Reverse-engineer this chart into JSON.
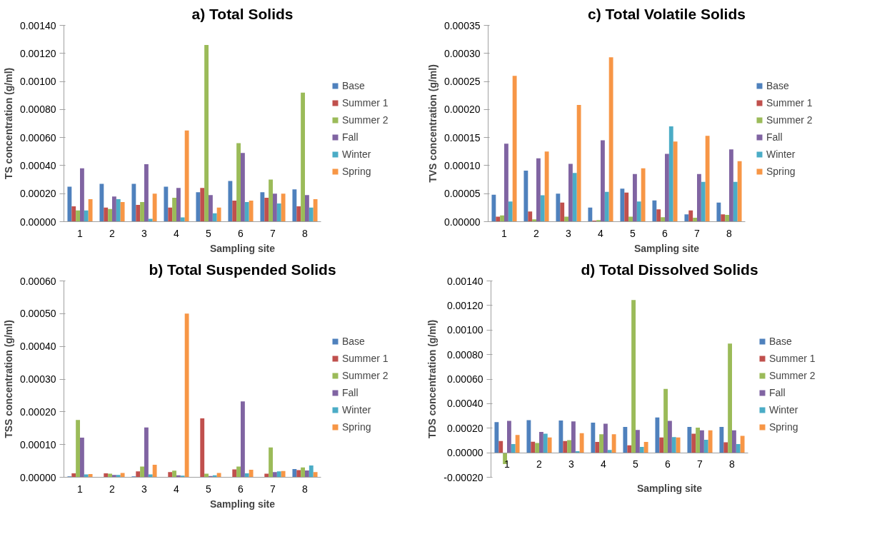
{
  "chart_data": [
    {
      "type": "bar",
      "title": "a) Total Solids",
      "xlabel": "Sampling site",
      "ylabel": "TS concentration (g/ml)",
      "legend": "right",
      "grid": false,
      "categories": [
        "1",
        "2",
        "3",
        "4",
        "5",
        "6",
        "7",
        "8"
      ],
      "ylim": [
        0,
        0.0014
      ],
      "yticks": [
        {
          "value": 0,
          "label": "0.00000"
        },
        {
          "value": 0.0002,
          "label": "0.00020"
        },
        {
          "value": 0.0004,
          "label": "0.00040"
        },
        {
          "value": 0.0006,
          "label": "0.00060"
        },
        {
          "value": 0.0008,
          "label": "0.00080"
        },
        {
          "value": 0.001,
          "label": "0.00100"
        },
        {
          "value": 0.0012,
          "label": "0.00120"
        },
        {
          "value": 0.0014,
          "label": "0.00140"
        }
      ],
      "series": [
        {
          "name": "Base",
          "color": "#4f81bd",
          "values": [
            0.00025,
            0.00027,
            0.00027,
            0.00025,
            0.00021,
            0.00029,
            0.00021,
            0.00023
          ]
        },
        {
          "name": "Summer 1",
          "color": "#c0504d",
          "values": [
            0.00011,
            0.0001,
            0.00012,
            0.0001,
            0.00024,
            0.00015,
            0.00017,
            0.00011
          ]
        },
        {
          "name": "Summer 2",
          "color": "#9bbb59",
          "values": [
            8e-05,
            9e-05,
            0.00014,
            0.00017,
            0.00126,
            0.00056,
            0.0003,
            0.00092
          ]
        },
        {
          "name": "Fall",
          "color": "#8064a2",
          "values": [
            0.00038,
            0.00018,
            0.00041,
            0.00024,
            0.00019,
            0.00049,
            0.0002,
            0.00019
          ]
        },
        {
          "name": "Winter",
          "color": "#4bacc6",
          "values": [
            8e-05,
            0.00016,
            2e-05,
            3e-05,
            6e-05,
            0.00014,
            0.00013,
            0.0001
          ]
        },
        {
          "name": "Spring",
          "color": "#f79646",
          "values": [
            0.00016,
            0.00014,
            0.0002,
            0.00065,
            0.0001,
            0.00015,
            0.0002,
            0.00016
          ]
        }
      ]
    },
    {
      "type": "bar",
      "title": "c) Total Volatile Solids",
      "xlabel": "Sampling site",
      "ylabel": "TVS concentration (g/ml)",
      "legend": "right",
      "grid": false,
      "categories": [
        "1",
        "2",
        "3",
        "4",
        "5",
        "6",
        "7",
        "8"
      ],
      "ylim": [
        0,
        0.00035
      ],
      "yticks": [
        {
          "value": 0,
          "label": "0.00000"
        },
        {
          "value": 5e-05,
          "label": "0.00005"
        },
        {
          "value": 0.0001,
          "label": "0.00010"
        },
        {
          "value": 0.00015,
          "label": "0.00015"
        },
        {
          "value": 0.0002,
          "label": "0.00020"
        },
        {
          "value": 0.00025,
          "label": "0.00025"
        },
        {
          "value": 0.0003,
          "label": "0.00030"
        },
        {
          "value": 0.00035,
          "label": "0.00035"
        }
      ],
      "series": [
        {
          "name": "Base",
          "color": "#4f81bd",
          "values": [
            4.8e-05,
            9.1e-05,
            5e-05,
            2.5e-05,
            5.9e-05,
            3.8e-05,
            1.3e-05,
            3.4e-05
          ]
        },
        {
          "name": "Summer 1",
          "color": "#c0504d",
          "values": [
            9e-06,
            1.8e-05,
            3.4e-05,
            2e-06,
            5.2e-05,
            2.2e-05,
            2e-05,
            1.3e-05
          ]
        },
        {
          "name": "Summer 2",
          "color": "#9bbb59",
          "values": [
            1.1e-05,
            4e-06,
            9e-06,
            3e-06,
            9e-06,
            8e-06,
            7e-06,
            1.2e-05
          ]
        },
        {
          "name": "Fall",
          "color": "#8064a2",
          "values": [
            0.000139,
            0.000113,
            0.000103,
            0.000145,
            8.5e-05,
            0.000121,
            8.5e-05,
            0.000129
          ]
        },
        {
          "name": "Winter",
          "color": "#4bacc6",
          "values": [
            3.6e-05,
            4.7e-05,
            8.7e-05,
            5.3e-05,
            3.6e-05,
            0.00017,
            7.1e-05,
            7.1e-05
          ]
        },
        {
          "name": "Spring",
          "color": "#f79646",
          "values": [
            0.00026,
            0.000125,
            0.000208,
            0.000293,
            9.5e-05,
            0.000143,
            0.000153,
            0.000108
          ]
        }
      ]
    },
    {
      "type": "bar",
      "title": "b) Total Suspended Solids",
      "xlabel": "Sampling site",
      "ylabel": "TSS concentration (g/ml)",
      "legend": "right",
      "grid": false,
      "categories": [
        "1",
        "2",
        "3",
        "4",
        "5",
        "6",
        "7",
        "8"
      ],
      "ylim": [
        0,
        0.0006
      ],
      "yticks": [
        {
          "value": 0,
          "label": "0.00000"
        },
        {
          "value": 0.0001,
          "label": "0.00010"
        },
        {
          "value": 0.0002,
          "label": "0.00020"
        },
        {
          "value": 0.0003,
          "label": "0.00030"
        },
        {
          "value": 0.0004,
          "label": "0.00040"
        },
        {
          "value": 0.0005,
          "label": "0.00050"
        },
        {
          "value": 0.0006,
          "label": "0.00060"
        }
      ],
      "series": [
        {
          "name": "Base",
          "color": "#4f81bd",
          "values": [
            3e-06,
            1e-06,
            3e-06,
            1e-06,
            1e-06,
            1e-06,
            1e-06,
            2.5e-05
          ]
        },
        {
          "name": "Summer 1",
          "color": "#c0504d",
          "values": [
            1.2e-05,
            1.2e-05,
            1.8e-05,
            1.6e-05,
            0.00018,
            2.4e-05,
            1.1e-05,
            2.2e-05
          ]
        },
        {
          "name": "Summer 2",
          "color": "#9bbb59",
          "values": [
            0.000175,
            1.1e-05,
            3.3e-05,
            2e-05,
            1.1e-05,
            3.3e-05,
            9.1e-05,
            3e-05
          ]
        },
        {
          "name": "Fall",
          "color": "#8064a2",
          "values": [
            0.000121,
            7e-06,
            0.000152,
            6e-06,
            4e-06,
            0.000232,
            1.6e-05,
            2.1e-05
          ]
        },
        {
          "name": "Winter",
          "color": "#4bacc6",
          "values": [
            9e-06,
            7e-06,
            9e-06,
            5e-06,
            6e-06,
            1.2e-05,
            1.8e-05,
            3.6e-05
          ]
        },
        {
          "name": "Spring",
          "color": "#f79646",
          "values": [
            1e-05,
            1.3e-05,
            3.8e-05,
            0.0005,
            1.3e-05,
            2.3e-05,
            1.9e-05,
            1.6e-05
          ]
        }
      ]
    },
    {
      "type": "bar",
      "title": "d) Total Dissolved Solids",
      "xlabel": "Sampling site",
      "ylabel": "TDS concentration (g/ml)",
      "legend": "right",
      "grid": false,
      "categories": [
        "1",
        "2",
        "3",
        "4",
        "5",
        "6",
        "7",
        "8"
      ],
      "ylim": [
        -0.0002,
        0.0014
      ],
      "yticks": [
        {
          "value": -0.0002,
          "label": "-0.00020"
        },
        {
          "value": 0,
          "label": "0.00000"
        },
        {
          "value": 0.0002,
          "label": "0.00020"
        },
        {
          "value": 0.0004,
          "label": "0.00040"
        },
        {
          "value": 0.0006,
          "label": "0.00060"
        },
        {
          "value": 0.0008,
          "label": "0.00080"
        },
        {
          "value": 0.001,
          "label": "0.00100"
        },
        {
          "value": 0.0012,
          "label": "0.00120"
        },
        {
          "value": 0.0014,
          "label": "0.00140"
        }
      ],
      "series": [
        {
          "name": "Base",
          "color": "#4f81bd",
          "values": [
            0.00025,
            0.000265,
            0.000262,
            0.000245,
            0.00021,
            0.000287,
            0.00021,
            0.00021
          ]
        },
        {
          "name": "Summer 1",
          "color": "#c0504d",
          "values": [
            9.5e-05,
            9e-05,
            9.5e-05,
            8.8e-05,
            6e-05,
            0.000125,
            0.000155,
            8.5e-05
          ]
        },
        {
          "name": "Summer 2",
          "color": "#9bbb59",
          "values": [
            -9.2e-05,
            8e-05,
            0.000103,
            0.00015,
            0.001245,
            0.00052,
            0.000205,
            0.00089
          ]
        },
        {
          "name": "Fall",
          "color": "#8064a2",
          "values": [
            0.00026,
            0.00017,
            0.000255,
            0.000237,
            0.000185,
            0.00026,
            0.000182,
            0.000183
          ]
        },
        {
          "name": "Winter",
          "color": "#4bacc6",
          "values": [
            7e-05,
            0.000155,
            1.3e-05,
            2.2e-05,
            4.8e-05,
            0.000127,
            0.000105,
            7e-05
          ]
        },
        {
          "name": "Spring",
          "color": "#f79646",
          "values": [
            0.000145,
            0.000125,
            0.00016,
            0.00015,
            8.8e-05,
            0.000125,
            0.000182,
            0.000138
          ]
        }
      ]
    }
  ]
}
